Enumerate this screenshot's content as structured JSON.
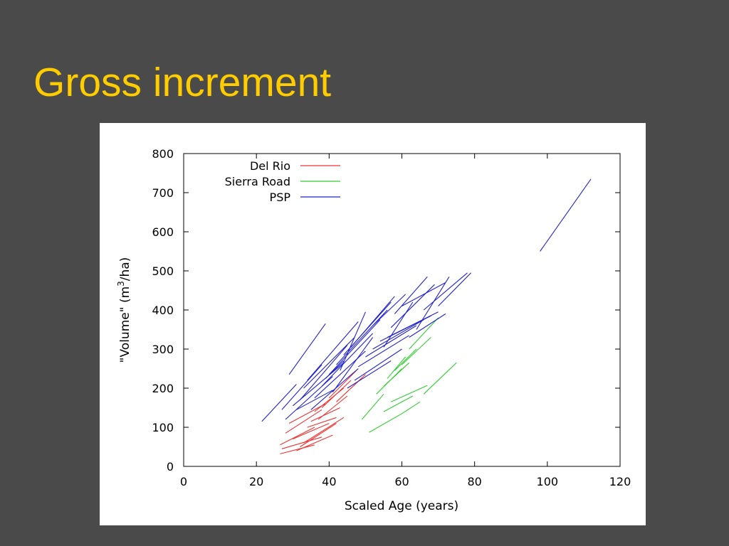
{
  "slide": {
    "title": "Gross increment"
  },
  "chart_data": {
    "type": "line",
    "title": "",
    "xlabel": "Scaled Age (years)",
    "ylabel_prefix": "\"Volume\" (m",
    "ylabel_superscript": "3",
    "ylabel_suffix": "/ha)",
    "xlim": [
      0,
      120
    ],
    "ylim": [
      0,
      800
    ],
    "xticks": [
      "0",
      "20",
      "40",
      "60",
      "80",
      "100",
      "120"
    ],
    "yticks": [
      "0",
      "100",
      "200",
      "300",
      "400",
      "500",
      "600",
      "700",
      "800"
    ],
    "grid": false,
    "legend_position": "top-left",
    "series": [
      {
        "name": "Del Rio",
        "color": "#ee3333",
        "segments": [
          [
            [
              26.5,
              32
            ],
            [
              36,
              55
            ]
          ],
          [
            [
              27,
              45
            ],
            [
              38,
              75
            ]
          ],
          [
            [
              26.5,
              55
            ],
            [
              36,
              100
            ]
          ],
          [
            [
              28,
              85
            ],
            [
              38,
              145
            ]
          ],
          [
            [
              29,
              110
            ],
            [
              39,
              160
            ]
          ],
          [
            [
              31,
              40
            ],
            [
              41,
              80
            ]
          ],
          [
            [
              32,
              50
            ],
            [
              42,
              110
            ]
          ],
          [
            [
              33,
              60
            ],
            [
              44,
              125
            ]
          ],
          [
            [
              34,
              100
            ],
            [
              42,
              125
            ]
          ],
          [
            [
              35,
              115
            ],
            [
              43,
              150
            ]
          ],
          [
            [
              36,
              140
            ],
            [
              44,
              200
            ]
          ],
          [
            [
              38,
              150
            ],
            [
              46,
              220
            ]
          ],
          [
            [
              40,
              175
            ],
            [
              48,
              250
            ]
          ],
          [
            [
              42,
              165
            ],
            [
              50,
              235
            ]
          ],
          [
            [
              30,
              70
            ],
            [
              40,
              110
            ]
          ],
          [
            [
              37,
              120
            ],
            [
              45,
              180
            ]
          ]
        ]
      },
      {
        "name": "Sierra Road",
        "color": "#33cc33",
        "segments": [
          [
            [
              51,
              87
            ],
            [
              60,
              135
            ]
          ],
          [
            [
              55,
              140
            ],
            [
              63,
              180
            ]
          ],
          [
            [
              57,
              165
            ],
            [
              67,
              207
            ]
          ],
          [
            [
              60,
              135
            ],
            [
              65,
              165
            ]
          ],
          [
            [
              66,
              185
            ],
            [
              75,
              265
            ]
          ],
          [
            [
              49,
              120
            ],
            [
              55,
              185
            ]
          ],
          [
            [
              53,
              185
            ],
            [
              60,
              250
            ]
          ],
          [
            [
              55,
              205
            ],
            [
              62,
              265
            ]
          ],
          [
            [
              58,
              245
            ],
            [
              64,
              300
            ]
          ],
          [
            [
              60,
              260
            ],
            [
              68,
              330
            ]
          ],
          [
            [
              62,
              300
            ],
            [
              70,
              380
            ]
          ],
          [
            [
              56,
              225
            ],
            [
              61,
              280
            ]
          ]
        ]
      },
      {
        "name": "PSP",
        "color": "#2222cc",
        "segments": [
          [
            [
              21.5,
              115
            ],
            [
              31,
              210
            ]
          ],
          [
            [
              29,
              235
            ],
            [
              39,
              365
            ]
          ],
          [
            [
              27,
              145
            ],
            [
              38,
              260
            ]
          ],
          [
            [
              28,
              120
            ],
            [
              41,
              230
            ]
          ],
          [
            [
              30,
              155
            ],
            [
              44,
              265
            ]
          ],
          [
            [
              32,
              170
            ],
            [
              45,
              310
            ]
          ],
          [
            [
              33,
              200
            ],
            [
              47,
              330
            ]
          ],
          [
            [
              34,
              220
            ],
            [
              48,
              370
            ]
          ],
          [
            [
              35,
              145
            ],
            [
              48,
              250
            ]
          ],
          [
            [
              36,
              175
            ],
            [
              50,
              295
            ]
          ],
          [
            [
              38,
              205
            ],
            [
              52,
              340
            ]
          ],
          [
            [
              40,
              235
            ],
            [
              54,
              375
            ]
          ],
          [
            [
              42,
              260
            ],
            [
              56,
              400
            ]
          ],
          [
            [
              44,
              285
            ],
            [
              57,
              420
            ]
          ],
          [
            [
              46,
              305
            ],
            [
              58,
              435
            ]
          ],
          [
            [
              48,
              255
            ],
            [
              62,
              335
            ]
          ],
          [
            [
              50,
              280
            ],
            [
              64,
              360
            ]
          ],
          [
            [
              52,
              300
            ],
            [
              66,
              375
            ]
          ],
          [
            [
              54,
              320
            ],
            [
              68,
              385
            ]
          ],
          [
            [
              56,
              330
            ],
            [
              70,
              395
            ]
          ],
          [
            [
              58,
              390
            ],
            [
              67,
              485
            ]
          ],
          [
            [
              60,
              410
            ],
            [
              72,
              470
            ]
          ],
          [
            [
              64,
              350
            ],
            [
              73,
              485
            ]
          ],
          [
            [
              66,
              400
            ],
            [
              78,
              495
            ]
          ],
          [
            [
              70,
              410
            ],
            [
              79,
              495
            ]
          ],
          [
            [
              98,
              550
            ],
            [
              112,
              735
            ]
          ],
          [
            [
              45,
              200
            ],
            [
              57,
              270
            ]
          ],
          [
            [
              47,
              220
            ],
            [
              60,
              300
            ]
          ],
          [
            [
              41,
              190
            ],
            [
              52,
              330
            ]
          ],
          [
            [
              55,
              305
            ],
            [
              63,
              420
            ]
          ],
          [
            [
              62,
              330
            ],
            [
              72,
              390
            ]
          ],
          [
            [
              57,
              355
            ],
            [
              69,
              465
            ]
          ],
          [
            [
              43,
              245
            ],
            [
              50,
              395
            ]
          ],
          [
            [
              39,
              225
            ],
            [
              44,
              270
            ]
          ],
          [
            [
              31,
              145
            ],
            [
              41,
              195
            ]
          ],
          [
            [
              52,
              360
            ],
            [
              61,
              440
            ]
          ]
        ]
      }
    ]
  }
}
